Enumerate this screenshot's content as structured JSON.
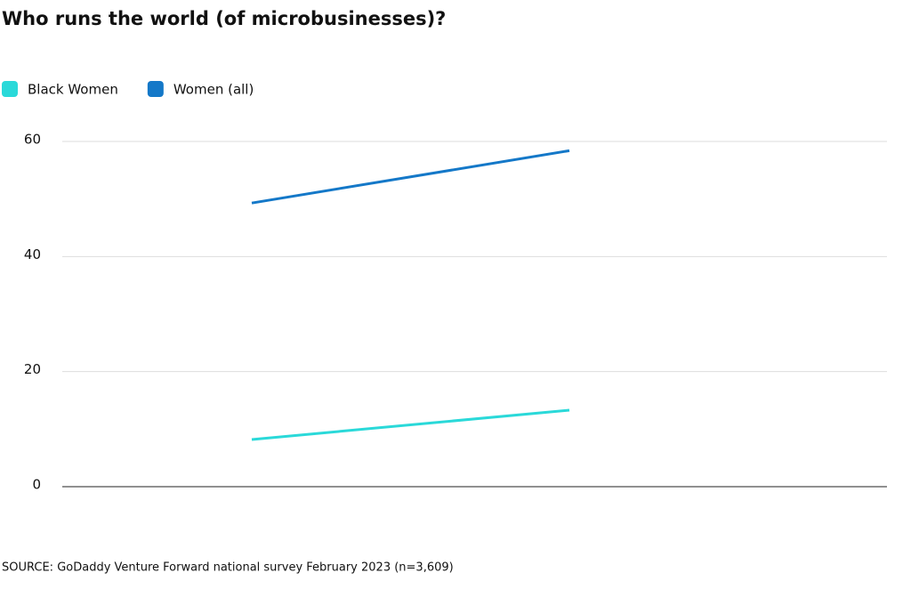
{
  "chart_data": {
    "type": "line",
    "title": "Who runs the world (of microbusinesses)?",
    "source": "SOURCE: GoDaddy Venture Forward national survey February 2023 (n=3,609)",
    "categories": [
      null,
      null
    ],
    "series": [
      {
        "name": "Black Women",
        "color": "#2ad9d9",
        "values": [
          8.2,
          13.3
        ]
      },
      {
        "name": "Women (all)",
        "color": "#1478c8",
        "values": [
          49.3,
          58.4
        ]
      }
    ],
    "ylim": [
      0,
      60
    ],
    "yticks": [
      0,
      20,
      40,
      60
    ],
    "grid": true
  }
}
